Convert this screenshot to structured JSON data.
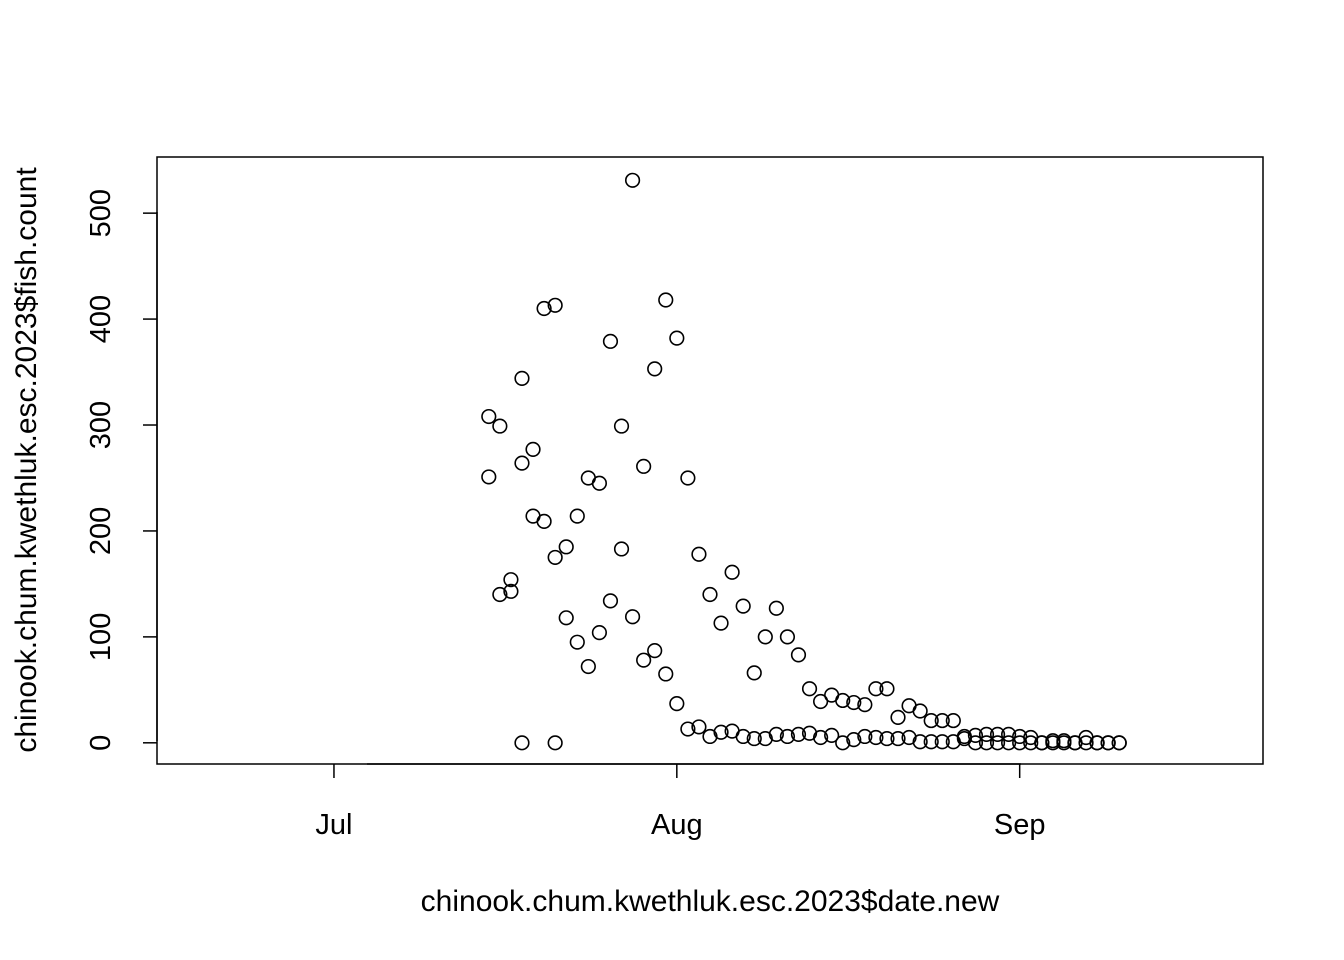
{
  "chart_data": {
    "type": "scatter",
    "title": "",
    "xlabel": "chinook.chum.kwethluk.esc.2023$date.new",
    "ylabel": "chinook.chum.kwethluk.esc.2023$fish.count",
    "xlim": [
      "2023-06-15",
      "2023-09-23"
    ],
    "ylim": [
      -20,
      553
    ],
    "x_ticks": [
      {
        "date": "2023-07-01",
        "label": "Jul"
      },
      {
        "date": "2023-08-01",
        "label": "Aug"
      },
      {
        "date": "2023-09-01",
        "label": "Sep"
      }
    ],
    "y_ticks": [
      0,
      100,
      200,
      300,
      400,
      500
    ],
    "grid": false,
    "marker": "open-circle",
    "series": [
      {
        "x": [
          "2023-07-15",
          "2023-07-16",
          "2023-07-17",
          "2023-07-18",
          "2023-07-19",
          "2023-07-20",
          "2023-07-21",
          "2023-07-22",
          "2023-07-23",
          "2023-07-24",
          "2023-07-25",
          "2023-07-26",
          "2023-07-27",
          "2023-07-28",
          "2023-07-29",
          "2023-07-30",
          "2023-07-31",
          "2023-08-01",
          "2023-08-02",
          "2023-08-03",
          "2023-08-04",
          "2023-08-05",
          "2023-08-06",
          "2023-08-07",
          "2023-08-08",
          "2023-08-09",
          "2023-08-10",
          "2023-08-11",
          "2023-08-12",
          "2023-08-13",
          "2023-08-14",
          "2023-08-15",
          "2023-08-16",
          "2023-08-17",
          "2023-08-18",
          "2023-08-19",
          "2023-08-20",
          "2023-08-21",
          "2023-08-22",
          "2023-08-23",
          "2023-08-24",
          "2023-08-25",
          "2023-08-26",
          "2023-08-27",
          "2023-08-28",
          "2023-08-29",
          "2023-08-30",
          "2023-08-31",
          "2023-09-01",
          "2023-09-02",
          "2023-09-03",
          "2023-09-04",
          "2023-09-05",
          "2023-09-06",
          "2023-09-07",
          "2023-09-08",
          "2023-09-09",
          "2023-09-10",
          "2023-07-15",
          "2023-07-16",
          "2023-07-17",
          "2023-07-18",
          "2023-07-19",
          "2023-07-20",
          "2023-07-21",
          "2023-07-22",
          "2023-07-23",
          "2023-07-24",
          "2023-07-25",
          "2023-07-26",
          "2023-07-27",
          "2023-07-28",
          "2023-07-29",
          "2023-07-30",
          "2023-07-31",
          "2023-08-01",
          "2023-08-02",
          "2023-08-03",
          "2023-08-04",
          "2023-08-05",
          "2023-08-06",
          "2023-08-07",
          "2023-08-08",
          "2023-08-09",
          "2023-08-10",
          "2023-08-11",
          "2023-08-12",
          "2023-08-13",
          "2023-08-14",
          "2023-08-15",
          "2023-08-16",
          "2023-08-17",
          "2023-08-18",
          "2023-08-19",
          "2023-08-20",
          "2023-08-21",
          "2023-08-22",
          "2023-08-23",
          "2023-08-24",
          "2023-08-25",
          "2023-08-26",
          "2023-08-27",
          "2023-08-28",
          "2023-08-29",
          "2023-08-30",
          "2023-08-31",
          "2023-09-01",
          "2023-09-02",
          "2023-09-03",
          "2023-09-04",
          "2023-09-05",
          "2023-09-06",
          "2023-09-07",
          "2023-09-08",
          "2023-09-09",
          "2023-09-10",
          "2023-07-18",
          "2023-07-21"
        ],
        "y": [
          308,
          299,
          143,
          344,
          214,
          410,
          175,
          118,
          95,
          72,
          104,
          134,
          183,
          119,
          78,
          87,
          65,
          37,
          13,
          15,
          6,
          10,
          11,
          6,
          4,
          4,
          8,
          6,
          8,
          9,
          5,
          7,
          0,
          3,
          6,
          5,
          4,
          4,
          5,
          1,
          1,
          1,
          1,
          4,
          0,
          0,
          0,
          0,
          0,
          0,
          0,
          0,
          0,
          0,
          0,
          0,
          0,
          0,
          251,
          140,
          154,
          264,
          277,
          209,
          413,
          185,
          214,
          250,
          245,
          379,
          299,
          531,
          261,
          353,
          418,
          382,
          250,
          178,
          140,
          113,
          161,
          129,
          66,
          100,
          127,
          100,
          83,
          51,
          39,
          45,
          40,
          38,
          36,
          51,
          51,
          24,
          35,
          30,
          21,
          21,
          21,
          6,
          7,
          8,
          8,
          8,
          6,
          5,
          0,
          2,
          2,
          0,
          5,
          0,
          0,
          0,
          0,
          0
        ]
      }
    ]
  }
}
